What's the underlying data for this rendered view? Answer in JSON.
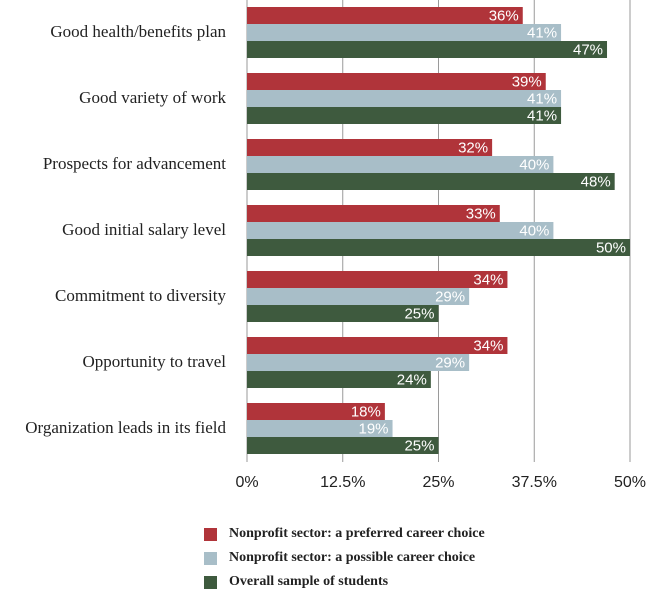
{
  "chart_data": {
    "type": "bar",
    "orientation": "horizontal",
    "categories": [
      "Good health/benefits plan",
      "Good variety of work",
      "Prospects for advancement",
      "Good initial salary level",
      "Commitment to diversity",
      "Opportunity to travel",
      "Organization leads in its field"
    ],
    "series": [
      {
        "name": "Nonprofit sector: a preferred career choice",
        "color": "#b0343a",
        "values": [
          36,
          39,
          32,
          33,
          34,
          34,
          18
        ]
      },
      {
        "name": "Nonprofit sector: a possible career choice",
        "color": "#a8bec8",
        "values": [
          41,
          41,
          40,
          40,
          29,
          29,
          19
        ]
      },
      {
        "name": "Overall sample of students",
        "color": "#3e5a3e",
        "values": [
          47,
          41,
          48,
          50,
          25,
          24,
          25
        ]
      }
    ],
    "xlim": [
      0,
      50
    ],
    "xticks": [
      "0%",
      "12.5%",
      "25%",
      "37.5%",
      "50%"
    ],
    "xtick_values": [
      0,
      12.5,
      25,
      37.5,
      50
    ],
    "value_suffix": "%",
    "grid": "vertical",
    "legend_position": "bottom"
  }
}
